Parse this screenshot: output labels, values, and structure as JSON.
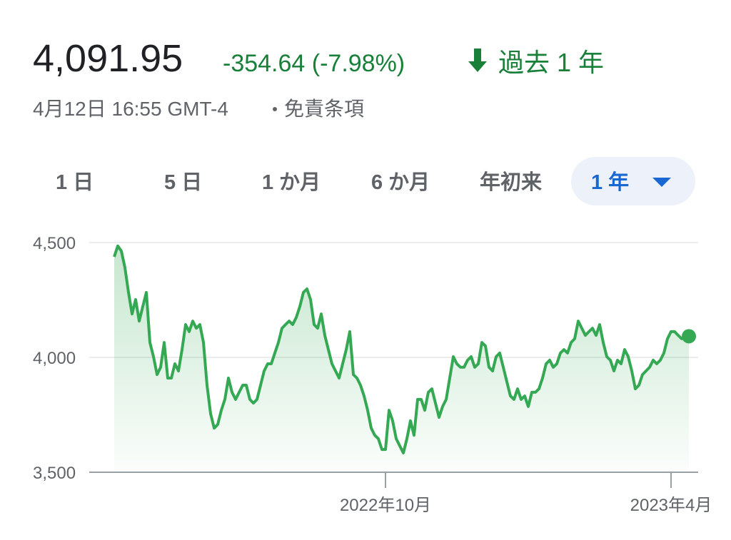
{
  "header": {
    "price": "4,091.95",
    "change": "-354.64 (-7.98%)",
    "period": "過去 1 年",
    "timestamp": "4月12日 16:55 GMT-4",
    "disclaimer": "免責条項"
  },
  "tabs": [
    "1 日",
    "5 日",
    "1 か月",
    "6 か月",
    "年初来",
    "1 年"
  ],
  "selected_tab": 5,
  "chart_data": {
    "type": "line",
    "color": "#34a853",
    "values": [
      4438,
      4485,
      4463,
      4391,
      4283,
      4189,
      4252,
      4158,
      4221,
      4283,
      4065,
      4003,
      3925,
      3957,
      4065,
      3910,
      3910,
      3972,
      3941,
      4034,
      4143,
      4112,
      4158,
      4127,
      4143,
      4065,
      3879,
      3755,
      3692,
      3708,
      3770,
      3817,
      3910,
      3848,
      3817,
      3848,
      3879,
      3879,
      3817,
      3801,
      3817,
      3879,
      3941,
      3972,
      3972,
      4019,
      4065,
      4127,
      4143,
      4158,
      4143,
      4174,
      4221,
      4283,
      4298,
      4252,
      4143,
      4127,
      4189,
      4096,
      4034,
      3972,
      3941,
      3910,
      3972,
      4034,
      4112,
      3925,
      3910,
      3879,
      3832,
      3770,
      3692,
      3661,
      3646,
      3599,
      3599,
      3770,
      3724,
      3646,
      3615,
      3584,
      3646,
      3724,
      3661,
      3817,
      3817,
      3770,
      3848,
      3863,
      3801,
      3739,
      3786,
      3817,
      3910,
      4003,
      3972,
      3957,
      3957,
      3988,
      4003,
      3957,
      3972,
      4065,
      4050,
      3957,
      3941,
      4003,
      4019,
      3957,
      3894,
      3832,
      3817,
      3863,
      3817,
      3832,
      3786,
      3848,
      3848,
      3863,
      3910,
      3972,
      3988,
      3957,
      3972,
      4019,
      4034,
      4019,
      4065,
      4081,
      4158,
      4127,
      4096,
      4112,
      4127,
      4096,
      4143,
      4065,
      4003,
      3988,
      3941,
      3988,
      3972,
      4034,
      4003,
      3941,
      3863,
      3879,
      3925,
      3941,
      3957,
      3988,
      3972,
      3988,
      4019,
      4081,
      4112,
      4112,
      4096,
      4081,
      4087,
      4091.95
    ],
    "xlim": [
      0,
      161
    ],
    "xticks": [
      {
        "value": 76,
        "label": "2022年10月"
      },
      {
        "value": 156,
        "label": "2023年4月"
      }
    ],
    "ylim": [
      3500,
      4500
    ],
    "yticks": [
      {
        "value": 3500,
        "label": "3,500"
      },
      {
        "value": 4000,
        "label": "4,000"
      },
      {
        "value": 4500,
        "label": "4,500"
      }
    ],
    "grid": true
  }
}
